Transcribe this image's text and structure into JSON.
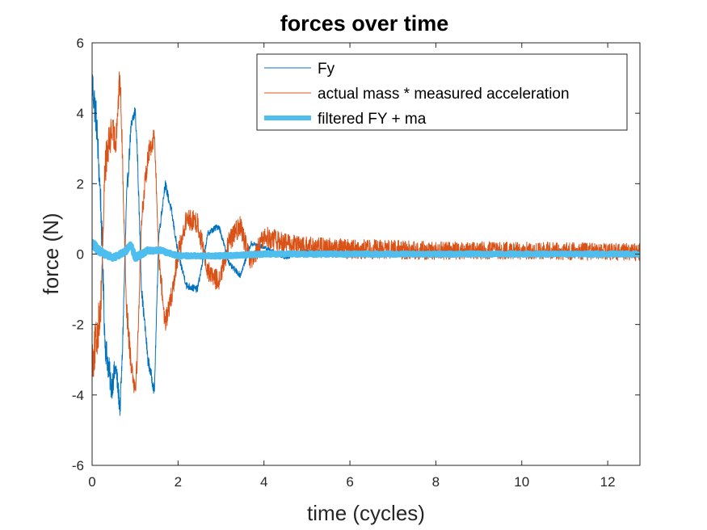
{
  "chart_data": {
    "type": "line",
    "title": "forces over time",
    "xlabel": "time (cycles)",
    "ylabel": "force (N)",
    "xlim": [
      0,
      12.75
    ],
    "ylim": [
      -6,
      6
    ],
    "xticks": [
      0,
      2,
      4,
      6,
      8,
      10,
      12
    ],
    "yticks": [
      -6,
      -4,
      -2,
      0,
      2,
      4,
      6
    ],
    "grid": false,
    "legend_position": "top-right",
    "series": [
      {
        "name": "Fy",
        "color": "#0072BD",
        "x": [
          0,
          0.1,
          0.2,
          0.3,
          0.45,
          0.55,
          0.65,
          0.7,
          0.8,
          0.9,
          1.0,
          1.05,
          1.15,
          1.3,
          1.45,
          1.55,
          1.7,
          1.85,
          2.0,
          2.2,
          2.45,
          2.7,
          2.95,
          3.2,
          3.45,
          3.7,
          4.0,
          4.5,
          5.0,
          6.0,
          8.0,
          10.0,
          12.75
        ],
        "values": [
          4.9,
          3.8,
          1.5,
          -2.5,
          -3.8,
          -3.2,
          -4.4,
          -3.0,
          1.5,
          3.5,
          4.1,
          3.0,
          -1.0,
          -3.0,
          -3.9,
          0.5,
          2.0,
          1.2,
          0.0,
          -0.9,
          -1.0,
          0.6,
          0.8,
          -0.3,
          -0.6,
          0.3,
          0.2,
          -0.1,
          0.1,
          0.05,
          -0.05,
          0.05,
          0.0
        ],
        "amplitude": [
          0.6,
          0.55,
          0.5,
          0.45,
          0.4,
          0.35,
          0.3,
          0.3,
          0.28,
          0.26,
          0.24,
          0.22,
          0.2,
          0.18,
          0.16,
          0.15,
          0.14,
          0.13,
          0.12,
          0.11,
          0.1,
          0.09,
          0.09,
          0.08,
          0.08,
          0.07,
          0.06,
          0.06,
          0.05,
          0.05,
          0.05,
          0.05,
          0.05
        ]
      },
      {
        "name": "actual mass * measured acceleration",
        "color": "#D95319",
        "x": [
          0,
          0.1,
          0.2,
          0.3,
          0.45,
          0.55,
          0.65,
          0.7,
          0.8,
          0.9,
          1.0,
          1.05,
          1.15,
          1.3,
          1.45,
          1.55,
          1.7,
          1.85,
          2.0,
          2.2,
          2.45,
          2.7,
          2.95,
          3.2,
          3.45,
          3.7,
          4.0,
          4.5,
          5.0,
          6.0,
          8.0,
          10.0,
          12.75
        ],
        "values": [
          -3.0,
          -2.5,
          -1.5,
          2.5,
          3.5,
          3.2,
          5.1,
          3.0,
          -1.5,
          -3.0,
          -3.8,
          -3.0,
          1.0,
          2.8,
          3.4,
          0.0,
          -2.0,
          -1.2,
          0.0,
          1.0,
          0.9,
          -0.5,
          -0.8,
          0.4,
          0.8,
          -0.3,
          0.5,
          0.3,
          0.2,
          0.15,
          0.1,
          0.1,
          0.05
        ],
        "amplitude": [
          0.7,
          0.65,
          0.6,
          0.55,
          0.5,
          0.45,
          0.4,
          0.4,
          0.38,
          0.36,
          0.34,
          0.32,
          0.3,
          0.3,
          0.3,
          0.3,
          0.3,
          0.3,
          0.3,
          0.3,
          0.3,
          0.3,
          0.3,
          0.3,
          0.3,
          0.3,
          0.3,
          0.3,
          0.3,
          0.28,
          0.26,
          0.25,
          0.25
        ]
      },
      {
        "name": "filtered FY + ma",
        "color": "#4DBEEE",
        "x": [
          0,
          0.15,
          0.3,
          0.5,
          0.8,
          0.9,
          1.0,
          1.3,
          1.6,
          2.0,
          3.0,
          4.0,
          6.0,
          8.0,
          10.0,
          12.75
        ],
        "values": [
          0.3,
          0.1,
          0.0,
          -0.1,
          0.1,
          0.3,
          -0.1,
          0.1,
          0.1,
          -0.05,
          -0.05,
          0.0,
          0.0,
          0.0,
          0.0,
          0.0
        ],
        "amplitude": [
          0.12,
          0.1,
          0.08,
          0.07,
          0.08,
          0.1,
          0.08,
          0.07,
          0.06,
          0.05,
          0.05,
          0.05,
          0.05,
          0.05,
          0.05,
          0.05
        ]
      }
    ]
  }
}
